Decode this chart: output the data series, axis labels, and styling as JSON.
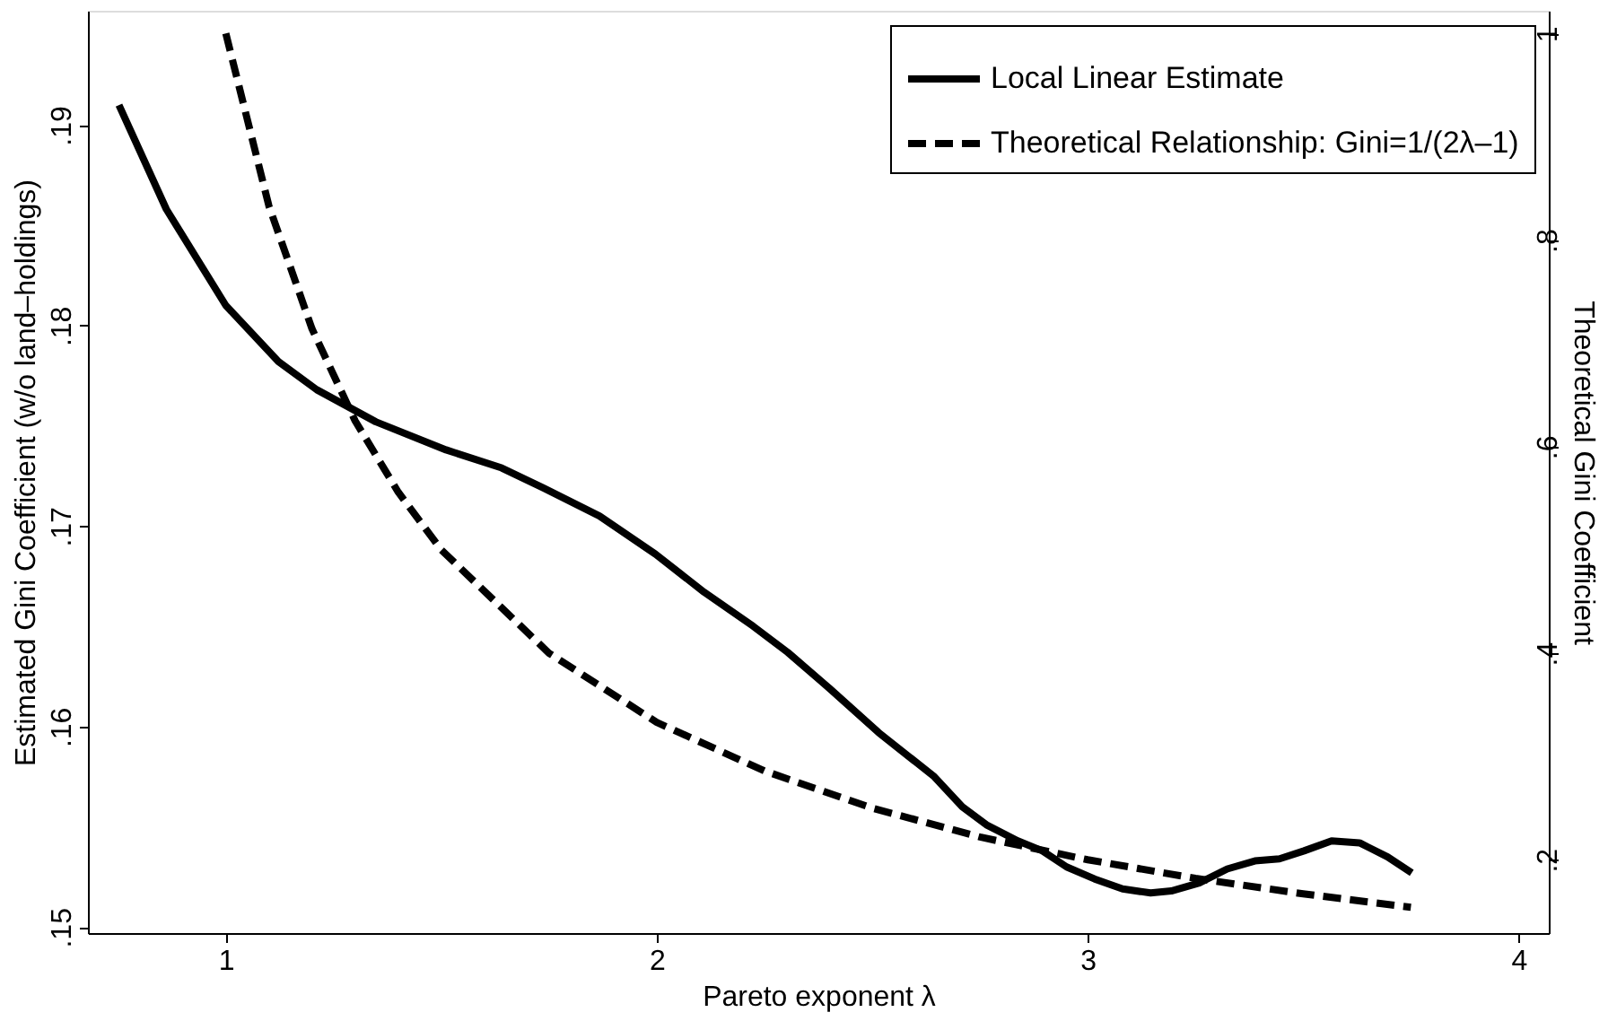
{
  "chart_data": {
    "type": "line",
    "xlabel": "Pareto exponent λ",
    "ylabel": "Estimated Gini Coefficient (w/o land–holdings)",
    "y2label": "Theoretical Gini Coefficient",
    "xlim": [
      0.68,
      4.07
    ],
    "xticks": [
      1,
      2,
      3,
      4
    ],
    "ylim": [
      0.1497,
      0.1957
    ],
    "yticks": [
      {
        "value": 0.15,
        "label": ".15"
      },
      {
        "value": 0.16,
        "label": ".16"
      },
      {
        "value": 0.17,
        "label": ".17"
      },
      {
        "value": 0.18,
        "label": ".18"
      },
      {
        "value": 0.19,
        "label": ".19"
      }
    ],
    "y2lim": [
      0.129,
      1.022
    ],
    "y2ticks": [
      {
        "value": 0.2,
        "label": ".2"
      },
      {
        "value": 0.4,
        "label": ".4"
      },
      {
        "value": 0.6,
        "label": ".6"
      },
      {
        "value": 0.8,
        "label": ".8"
      },
      1
    ],
    "grid": false,
    "legend": "top right",
    "series": [
      {
        "name": "Local Linear Estimate",
        "color": "#000000",
        "line_style": "solid",
        "x": [
          0.752,
          0.862,
          1.0,
          1.122,
          1.211,
          1.348,
          1.511,
          1.64,
          1.737,
          1.867,
          1.997,
          2.11,
          2.224,
          2.304,
          2.401,
          2.515,
          2.644,
          2.709,
          2.765,
          2.838,
          2.895,
          2.951,
          3.016,
          3.081,
          3.146,
          3.194,
          3.259,
          3.324,
          3.388,
          3.445,
          3.502,
          3.566,
          3.631,
          3.696,
          3.752
        ],
        "values": [
          0.191,
          0.1858,
          0.181,
          0.1782,
          0.1768,
          0.1752,
          0.1738,
          0.1729,
          0.1719,
          0.1705,
          0.1686,
          0.1667,
          0.165,
          0.1637,
          0.1619,
          0.1597,
          0.1575,
          0.156,
          0.1551,
          0.1543,
          0.1538,
          0.153,
          0.1524,
          0.1519,
          0.1517,
          0.1518,
          0.1522,
          0.1529,
          0.1533,
          0.1534,
          0.1538,
          0.1543,
          0.1542,
          0.1535,
          0.1527
        ]
      },
      {
        "name": "Theoretical Relationship: Gini=1/(2λ–1)",
        "color": "#000000",
        "line_style": "dashed",
        "axis": "y2",
        "x": [
          1.0,
          1.1,
          1.2,
          1.3,
          1.4,
          1.5,
          1.75,
          2.0,
          2.25,
          2.5,
          2.75,
          3.0,
          3.25,
          3.5,
          3.75
        ],
        "values": [
          1.0,
          0.833,
          0.714,
          0.625,
          0.556,
          0.5,
          0.4,
          0.333,
          0.286,
          0.25,
          0.222,
          0.2,
          0.182,
          0.167,
          0.154
        ]
      }
    ]
  }
}
